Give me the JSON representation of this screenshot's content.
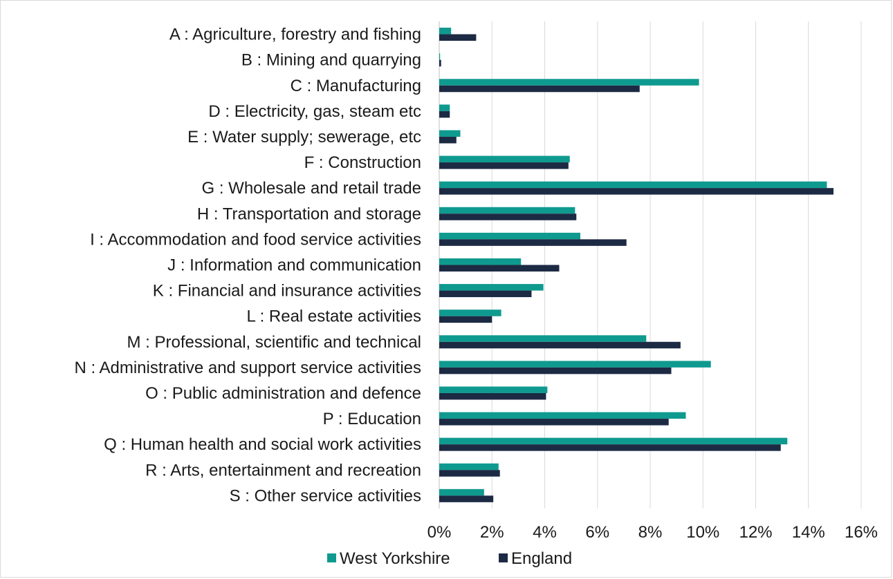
{
  "chart_data": {
    "type": "bar",
    "orientation": "horizontal",
    "title": "",
    "xlabel": "",
    "ylabel": "",
    "xlim": [
      0,
      16
    ],
    "x_ticks": [
      "0%",
      "2%",
      "4%",
      "6%",
      "8%",
      "10%",
      "12%",
      "14%",
      "16%"
    ],
    "grid": "vertical",
    "legend_position": "bottom",
    "categories": [
      "A : Agriculture, forestry and fishing",
      "B : Mining and quarrying",
      "C : Manufacturing",
      "D : Electricity, gas, steam etc",
      "E : Water supply; sewerage, etc",
      "F : Construction",
      "G : Wholesale and retail trade",
      "H : Transportation and storage",
      "I : Accommodation and food service activities",
      "J : Information and communication",
      "K : Financial and insurance activities",
      "L : Real estate activities",
      "M : Professional, scientific and technical",
      "N : Administrative and support service activities",
      "O : Public administration and defence",
      "P : Education",
      "Q : Human health and social work activities",
      "R : Arts, entertainment and recreation",
      "S : Other service activities"
    ],
    "series": [
      {
        "name": "West Yorkshire",
        "color": "#0f9a8f",
        "values": [
          0.45,
          0.03,
          9.85,
          0.4,
          0.8,
          4.95,
          14.7,
          5.15,
          5.35,
          3.1,
          3.95,
          2.35,
          7.85,
          10.3,
          4.1,
          9.35,
          13.2,
          2.25,
          1.7
        ]
      },
      {
        "name": "England",
        "color": "#1c2a44",
        "values": [
          1.4,
          0.07,
          7.6,
          0.4,
          0.65,
          4.9,
          14.95,
          5.2,
          7.1,
          4.55,
          3.5,
          2.0,
          9.15,
          8.8,
          4.05,
          8.7,
          12.95,
          2.3,
          2.05
        ]
      }
    ]
  }
}
